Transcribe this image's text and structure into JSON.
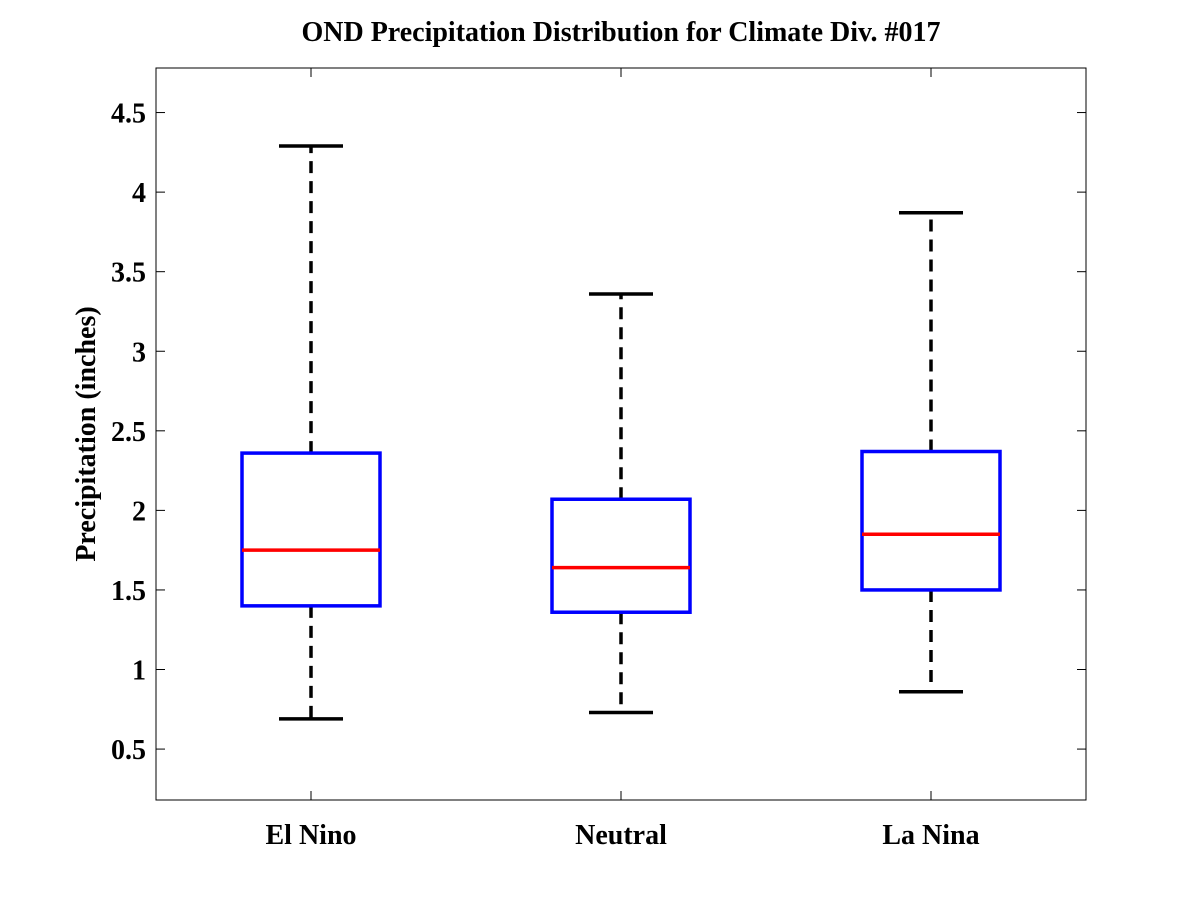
{
  "chart_data": {
    "type": "box",
    "title": "OND Precipitation Distribution for Climate Div. #017",
    "xlabel": "",
    "ylabel": "Precipitation (inches)",
    "categories": [
      "El Nino",
      "Neutral",
      "La Nina"
    ],
    "ylim": [
      0.18,
      4.78
    ],
    "yticks": [
      0.5,
      1,
      1.5,
      2,
      2.5,
      3,
      3.5,
      4,
      4.5
    ],
    "ytick_labels": [
      "0.5",
      "1",
      "1.5",
      "2",
      "2.5",
      "3",
      "3.5",
      "4",
      "4.5"
    ],
    "grid": false,
    "boxes": [
      {
        "category": "El Nino",
        "whisker_low": 0.69,
        "q1": 1.4,
        "median": 1.75,
        "q3": 2.36,
        "whisker_high": 4.29
      },
      {
        "category": "Neutral",
        "whisker_low": 0.73,
        "q1": 1.36,
        "median": 1.64,
        "q3": 2.07,
        "whisker_high": 3.36
      },
      {
        "category": "La Nina",
        "whisker_low": 0.86,
        "q1": 1.5,
        "median": 1.85,
        "q3": 2.37,
        "whisker_high": 3.87
      }
    ],
    "colors": {
      "box": "#0000ff",
      "median": "#ff0000",
      "whisker": "#000000",
      "axes": "#000000"
    }
  }
}
